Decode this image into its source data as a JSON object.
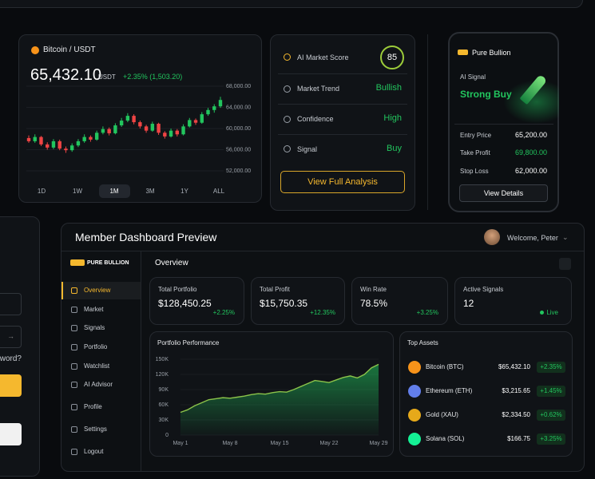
{
  "btc_card": {
    "pair": "Bitcoin / USDT",
    "price": "65,432.10",
    "unit": "USDT",
    "change": "+2.35% (1,503.20)",
    "ylim": [
      52000,
      68000
    ],
    "yticks": [
      {
        "value": 68000,
        "label": "68,000.00"
      },
      {
        "value": 64000,
        "label": "64,000.00"
      },
      {
        "value": 60000,
        "label": "60,000.00"
      },
      {
        "value": 56000,
        "label": "56,000.00"
      },
      {
        "value": 52000,
        "label": "52,000.00"
      }
    ],
    "candles": [
      [
        58200,
        58700,
        57300,
        57600
      ],
      [
        57600,
        58900,
        57300,
        58400
      ],
      [
        58400,
        58600,
        56700,
        57000
      ],
      [
        57000,
        57400,
        56000,
        56400
      ],
      [
        56400,
        58000,
        56100,
        57600
      ],
      [
        57600,
        57900,
        55900,
        56200
      ],
      [
        56200,
        56600,
        55400,
        55900
      ],
      [
        55900,
        57200,
        55600,
        56800
      ],
      [
        56800,
        58000,
        56500,
        57600
      ],
      [
        57600,
        58900,
        57300,
        58400
      ],
      [
        58400,
        58700,
        57500,
        57900
      ],
      [
        57900,
        59600,
        57700,
        59200
      ],
      [
        59200,
        60400,
        58900,
        59900
      ],
      [
        59900,
        60200,
        58700,
        59100
      ],
      [
        59100,
        61000,
        58900,
        60600
      ],
      [
        60600,
        62000,
        60300,
        61500
      ],
      [
        61500,
        62900,
        61200,
        62400
      ],
      [
        62400,
        62700,
        60800,
        61200
      ],
      [
        61200,
        61500,
        60000,
        60400
      ],
      [
        60400,
        60700,
        59200,
        59600
      ],
      [
        59600,
        61300,
        59400,
        60900
      ],
      [
        60900,
        61100,
        58800,
        59200
      ],
      [
        59200,
        59500,
        58100,
        58500
      ],
      [
        58500,
        60000,
        58300,
        59600
      ],
      [
        59600,
        59900,
        58500,
        58900
      ],
      [
        58900,
        60800,
        58700,
        60400
      ],
      [
        60400,
        62000,
        60200,
        61600
      ],
      [
        61600,
        61900,
        60700,
        61100
      ],
      [
        61100,
        63100,
        60900,
        62700
      ],
      [
        62700,
        63900,
        62400,
        63500
      ],
      [
        63500,
        64600,
        63000,
        64200
      ],
      [
        64200,
        66000,
        63900,
        65400
      ]
    ],
    "up_color": "#22c55e",
    "down_color": "#ef4444",
    "ranges": [
      "1D",
      "1W",
      "1M",
      "3M",
      "1Y",
      "ALL"
    ]
  },
  "ai_card": {
    "rows": [
      {
        "label": "AI Market Score",
        "value": "85"
      },
      {
        "label": "Market Trend",
        "value": "Bullish"
      },
      {
        "label": "Confidence",
        "value": "High"
      },
      {
        "label": "Signal",
        "value": "Buy"
      }
    ],
    "button": "View Full Analysis"
  },
  "phone": {
    "brand": "Pure Bullion",
    "signal_label": "AI Signal",
    "signal": "Strong Buy",
    "rows": [
      {
        "label": "Entry Price",
        "value": "65,200.00"
      },
      {
        "label": "Take Profit",
        "value": "69,800.00"
      },
      {
        "label": "Stop Loss",
        "value": "62,000.00"
      }
    ],
    "button": "View Details"
  },
  "login_card": {
    "link": "sword?"
  },
  "dashboard": {
    "title": "Member Dashboard Preview",
    "welcome": "Welcome, Peter",
    "logo": "PURE BULLION",
    "nav": [
      "Overview",
      "Market",
      "Signals",
      "Portfolio",
      "Watchlist",
      "AI Advisor",
      "Profile",
      "Settings",
      "Logout"
    ],
    "section": "Overview",
    "stats": [
      {
        "label": "Total Portfolio",
        "value": "$128,450.25",
        "change": "+2.25%"
      },
      {
        "label": "Total Profit",
        "value": "$15,750.35",
        "change": "+12.35%"
      },
      {
        "label": "Win Rate",
        "value": "78.5%",
        "change": "+3.25%"
      },
      {
        "label": "Active Signals",
        "value": "12",
        "change": "Live"
      }
    ],
    "performance": {
      "title": "Portfolio Performance",
      "categories": [
        "May 1",
        null,
        null,
        null,
        null,
        null,
        null,
        "May 8",
        null,
        null,
        null,
        null,
        null,
        null,
        "May 15",
        null,
        null,
        null,
        null,
        null,
        null,
        "May 22",
        null,
        null,
        null,
        null,
        null,
        null,
        "May 29"
      ],
      "values": [
        45000,
        50000,
        58000,
        64000,
        70000,
        72000,
        74000,
        73000,
        75000,
        77000,
        80000,
        82000,
        81000,
        84000,
        86000,
        85000,
        90000,
        96000,
        102000,
        108000,
        106000,
        104000,
        109000,
        114000,
        117000,
        113000,
        120000,
        133000,
        140000
      ],
      "ylim": [
        0,
        150000
      ],
      "yticks": [
        {
          "value": 150000,
          "label": "150K"
        },
        {
          "value": 120000,
          "label": "120K"
        },
        {
          "value": 90000,
          "label": "90K"
        },
        {
          "value": 60000,
          "label": "60K"
        },
        {
          "value": 30000,
          "label": "30K"
        },
        0
      ],
      "color": "#8bc34a"
    },
    "assets": {
      "title": "Top Assets",
      "rows": [
        {
          "name": "Bitcoin (BTC)",
          "price": "$65,432.10",
          "change": "+2.35%",
          "color": "#f7931a"
        },
        {
          "name": "Ethereum (ETH)",
          "price": "$3,215.65",
          "change": "+1.45%",
          "color": "#627eea"
        },
        {
          "name": "Gold (XAU)",
          "price": "$2,334.50",
          "change": "+0.62%",
          "color": "#e6a91a"
        },
        {
          "name": "Solana (SOL)",
          "price": "$166.75",
          "change": "+3.25%",
          "color": "#14f195"
        }
      ]
    }
  }
}
